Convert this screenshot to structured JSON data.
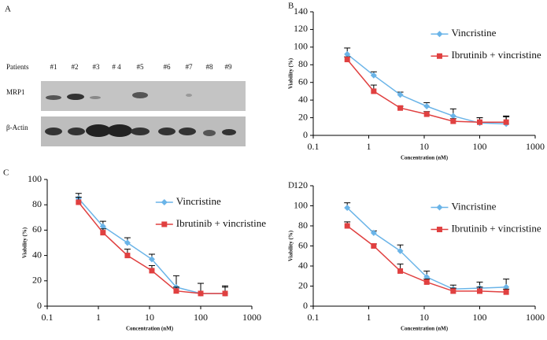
{
  "blot": {
    "panel": "A",
    "patients_label": "Patients",
    "patients": [
      "#1",
      "#2",
      "#3",
      "# 4",
      "#5",
      "#6",
      "#7",
      "#8",
      "#9"
    ],
    "rows": [
      "MRP1",
      "β-Actin"
    ]
  },
  "chart_data": [
    {
      "type": "line",
      "panel": "B",
      "xlabel": "Concentration (nM)",
      "ylabel": "Viability (%)",
      "xscale": "log",
      "xlim": [
        0.1,
        1000
      ],
      "xticks": [
        0.1,
        1,
        10,
        100,
        1000
      ],
      "ylim": [
        0,
        140
      ],
      "yticks": [
        0,
        20,
        40,
        60,
        80,
        100,
        120,
        140
      ],
      "legend": "upper right",
      "x": [
        0.41,
        1.23,
        3.7,
        11.1,
        33.3,
        100,
        300
      ],
      "series": [
        {
          "name": "Vincristine",
          "color": "#6ab4e8",
          "marker": "diamond",
          "values": [
            92,
            68,
            46,
            33,
            22,
            14,
            13
          ],
          "errors": [
            7,
            4,
            3,
            4,
            8,
            6,
            8
          ]
        },
        {
          "name": "Ibrutinib + vincristine",
          "color": "#e04040",
          "marker": "square",
          "values": [
            86,
            50,
            31,
            24,
            16,
            15,
            15
          ],
          "errors": [
            3,
            7,
            2,
            3,
            3,
            5,
            7
          ]
        }
      ]
    },
    {
      "type": "line",
      "panel": "C",
      "xlabel": "Concentration (nM)",
      "ylabel": "Viability (%)",
      "xscale": "log",
      "xlim": [
        0.1,
        1000
      ],
      "xticks": [
        0.1,
        1,
        10,
        100,
        1000
      ],
      "ylim": [
        0,
        100
      ],
      "yticks": [
        0,
        20,
        40,
        60,
        80,
        100
      ],
      "legend": "upper right",
      "x": [
        0.41,
        1.23,
        3.7,
        11.1,
        33.3,
        100,
        300
      ],
      "series": [
        {
          "name": "Vincristine",
          "color": "#6ab4e8",
          "marker": "diamond",
          "values": [
            85,
            63,
            50,
            37,
            15,
            10,
            10
          ],
          "errors": [
            4,
            4,
            4,
            4,
            9,
            8,
            6
          ]
        },
        {
          "name": "Ibrutinib + vincristine",
          "color": "#e04040",
          "marker": "square",
          "values": [
            82,
            58,
            40,
            28,
            12,
            10,
            10
          ],
          "errors": [
            4,
            3,
            5,
            4,
            3,
            8,
            5
          ]
        }
      ]
    },
    {
      "type": "line",
      "panel": "D",
      "xlabel": "Concentration (nM)",
      "ylabel": "Viability (%)",
      "xscale": "log",
      "xlim": [
        0.1,
        1000
      ],
      "xticks": [
        0.1,
        1,
        10,
        100,
        1000
      ],
      "ylim": [
        0,
        120
      ],
      "yticks": [
        0,
        20,
        40,
        60,
        80,
        100,
        120
      ],
      "legend": "upper right",
      "x": [
        0.41,
        1.23,
        3.7,
        11.1,
        33.3,
        100,
        300
      ],
      "series": [
        {
          "name": "Vincristine",
          "color": "#6ab4e8",
          "marker": "diamond",
          "values": [
            98,
            73,
            55,
            29,
            17,
            18,
            19
          ],
          "errors": [
            5,
            2,
            6,
            6,
            4,
            6,
            8
          ]
        },
        {
          "name": "Ibrutinib + vincristine",
          "color": "#e04040",
          "marker": "square",
          "values": [
            80,
            60,
            35,
            24,
            15,
            15,
            14
          ],
          "errors": [
            4,
            2,
            7,
            3,
            3,
            4,
            3
          ]
        }
      ]
    }
  ]
}
